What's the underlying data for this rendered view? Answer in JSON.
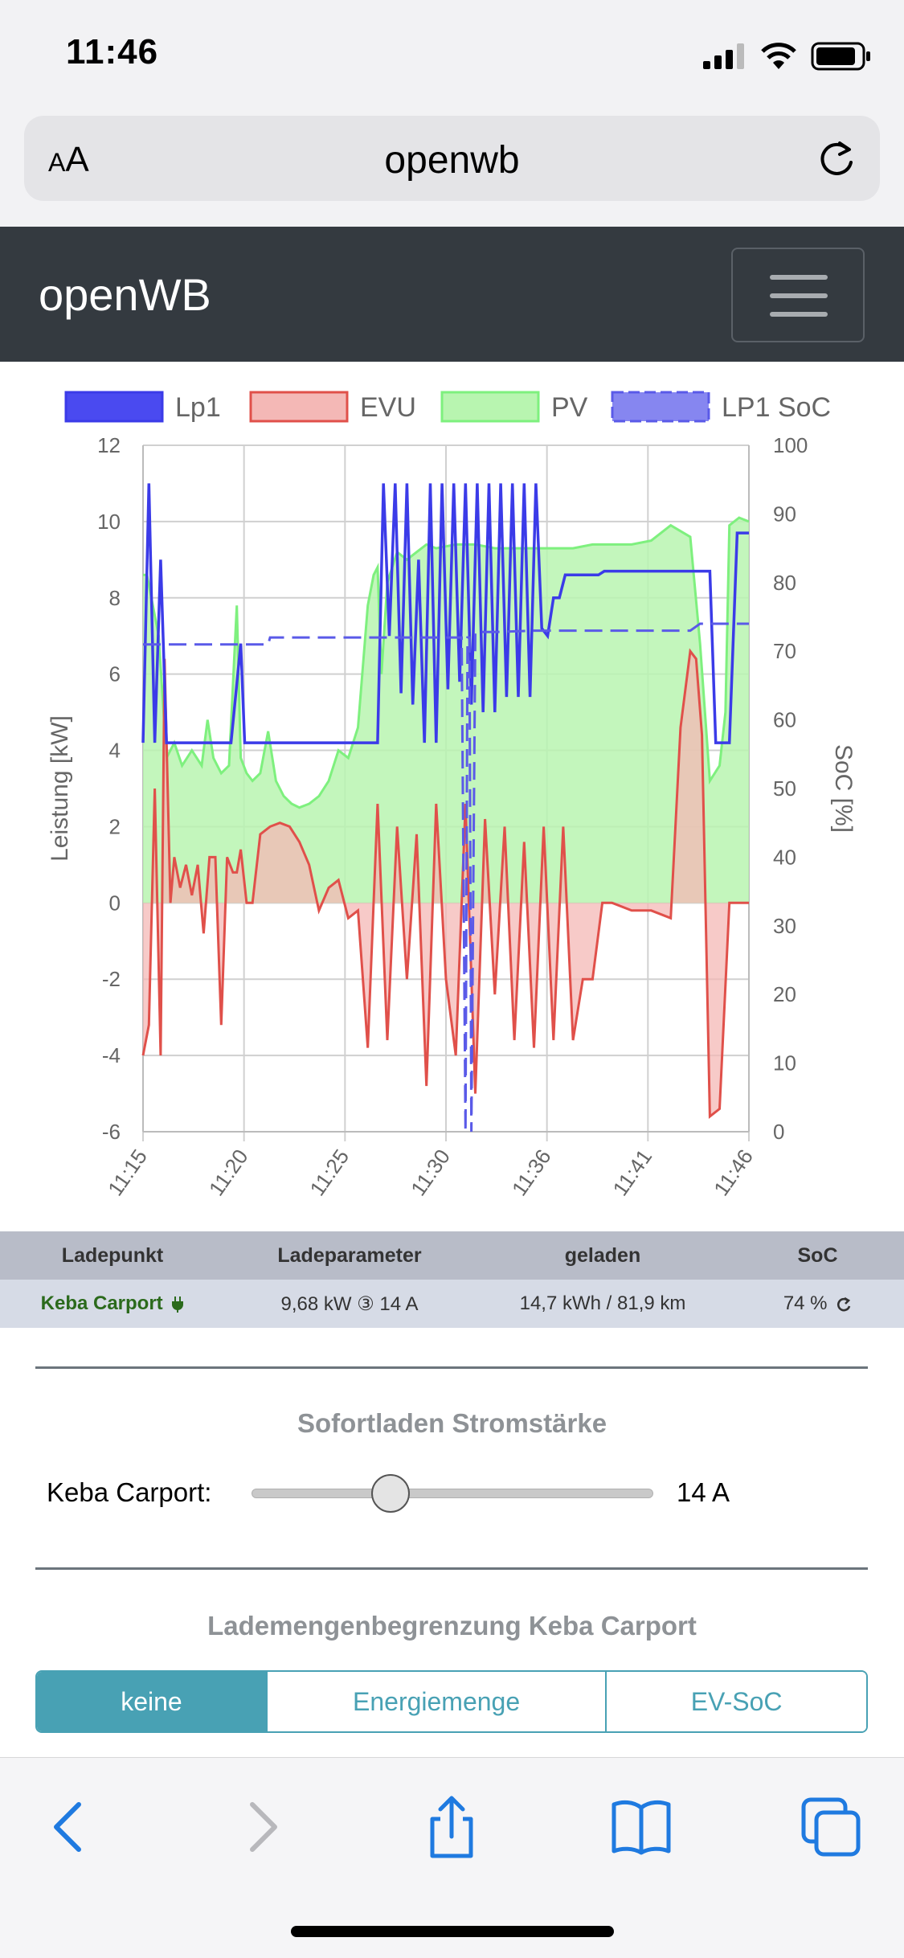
{
  "status": {
    "time": "11:46"
  },
  "browser": {
    "aa_label_small": "A",
    "aa_label_large": "A",
    "url": "openwb"
  },
  "navbar": {
    "brand": "openWB"
  },
  "chart_data": {
    "type": "line",
    "legend": [
      {
        "name": "Lp1",
        "color": "#3b3be8",
        "fill": "#4a4af0"
      },
      {
        "name": "EVU",
        "color": "#e0504a",
        "fill": "#f4b8b6"
      },
      {
        "name": "PV",
        "color": "#7ef07e",
        "fill": "#b8f5b0"
      },
      {
        "name": "LP1 SoC",
        "color": "#5a5ae8",
        "fill": "#8686f0"
      }
    ],
    "ylabel": "Leistung [kW]",
    "y2label": "SoC [%]",
    "ylim": [
      -6,
      12
    ],
    "y2lim": [
      0,
      100
    ],
    "yticks": [
      12,
      10,
      8,
      6,
      4,
      2,
      0,
      -2,
      -4,
      -6
    ],
    "y2ticks": [
      100,
      90,
      80,
      70,
      60,
      50,
      40,
      30,
      20,
      10,
      0
    ],
    "xticks": [
      "11:15",
      "11:20",
      "11:25",
      "11:30",
      "11:36",
      "11:41",
      "11:46"
    ],
    "xlim": [
      0,
      31
    ],
    "series": [
      {
        "name": "PV",
        "x": [
          0,
          0.2,
          0.8,
          1.2,
          1.6,
          2,
          2.5,
          3,
          3.3,
          3.6,
          4,
          4.4,
          4.8,
          5,
          5.3,
          5.6,
          6,
          6.4,
          6.8,
          7.2,
          7.6,
          8,
          8.5,
          9,
          9.5,
          10,
          10.5,
          11,
          11.5,
          11.8,
          12,
          12.2,
          12.5,
          13,
          13.5,
          14,
          14.5,
          15,
          16,
          17,
          18,
          19,
          20,
          21,
          22,
          23,
          24,
          25,
          26,
          27,
          28,
          28.5,
          29,
          29.5,
          29.8,
          30,
          30.5,
          31
        ],
        "values": [
          8.6,
          8.6,
          7.0,
          3.8,
          4.2,
          3.6,
          4.0,
          3.6,
          4.8,
          3.8,
          3.4,
          3.6,
          7.8,
          3.8,
          3.4,
          3.2,
          3.4,
          4.5,
          3.2,
          2.8,
          2.6,
          2.5,
          2.6,
          2.8,
          3.2,
          4.0,
          3.8,
          4.6,
          7.8,
          8.6,
          8.8,
          6.0,
          8.4,
          9.2,
          9.0,
          9.2,
          9.4,
          9.3,
          9.4,
          9.4,
          9.3,
          9.3,
          9.3,
          9.3,
          9.3,
          9.4,
          9.4,
          9.4,
          9.5,
          9.9,
          9.6,
          6.8,
          3.2,
          3.6,
          5.0,
          9.9,
          10.1,
          10.0
        ]
      },
      {
        "name": "EVU",
        "x": [
          0,
          0.3,
          0.6,
          0.9,
          1.1,
          1.4,
          1.6,
          1.9,
          2.2,
          2.5,
          2.8,
          3.1,
          3.4,
          3.7,
          4.0,
          4.3,
          4.6,
          4.8,
          5.0,
          5.3,
          5.6,
          6,
          6.5,
          7,
          7.5,
          8,
          8.5,
          9,
          9.5,
          10,
          10.5,
          11,
          11.5,
          12,
          12.5,
          13,
          13.5,
          14,
          14.5,
          15,
          15.5,
          16,
          16.5,
          17,
          17.5,
          18,
          18.5,
          19,
          19.5,
          20,
          20.5,
          21,
          21.5,
          22,
          22.5,
          23,
          23.5,
          24,
          25,
          26,
          27,
          27.5,
          28,
          28.3,
          28.6,
          29,
          29.5,
          30,
          30.5,
          31
        ],
        "values": [
          -4.0,
          -3.2,
          3.0,
          -4.0,
          6.4,
          0,
          1.2,
          0.4,
          1.0,
          0.2,
          1.0,
          -0.8,
          1.2,
          1.2,
          -3.2,
          1.2,
          0.8,
          0.8,
          1.4,
          0,
          0,
          1.8,
          2.0,
          2.1,
          2.0,
          1.6,
          1.0,
          -0.2,
          0.4,
          0.6,
          -0.4,
          -0.2,
          -3.8,
          2.6,
          -3.6,
          2.0,
          -2.0,
          1.8,
          -4.8,
          2.6,
          -2.0,
          -4.0,
          2.6,
          -5.0,
          2.2,
          -2.4,
          2.0,
          -3.6,
          1.6,
          -3.8,
          2.0,
          -3.6,
          2.0,
          -3.6,
          -2.0,
          -2.0,
          0,
          0,
          -0.2,
          -0.2,
          -0.4,
          4.6,
          6.6,
          6.4,
          4.4,
          -5.6,
          -5.4,
          0,
          0,
          0
        ]
      },
      {
        "name": "Lp1",
        "x": [
          0,
          0.3,
          0.6,
          0.9,
          1.2,
          1.5,
          1.8,
          2.2,
          2.6,
          3,
          4,
          4.5,
          5,
          5.2,
          5.5,
          6,
          7,
          8,
          9,
          10,
          11,
          12,
          12.3,
          12.6,
          12.9,
          13.2,
          13.5,
          13.8,
          14.1,
          14.4,
          14.7,
          15,
          15.3,
          15.6,
          15.9,
          16.2,
          16.5,
          16.8,
          17.1,
          17.4,
          17.7,
          18,
          18.3,
          18.6,
          18.9,
          19.2,
          19.5,
          19.8,
          20.1,
          20.4,
          20.7,
          21,
          21.3,
          21.6,
          21.9,
          22.2,
          22.5,
          22.8,
          23,
          23.3,
          23.6,
          24,
          25,
          26,
          27,
          28,
          28.3,
          28.6,
          29,
          29.3,
          29.6,
          30,
          30.4,
          31
        ],
        "values": [
          4.2,
          11.0,
          4.2,
          9.0,
          4.2,
          4.2,
          4.2,
          4.2,
          4.2,
          4.2,
          4.2,
          4.2,
          6.8,
          4.2,
          4.2,
          4.2,
          4.2,
          4.2,
          4.2,
          4.2,
          4.2,
          4.2,
          11.0,
          7.0,
          11.0,
          5.5,
          11.0,
          5.2,
          9.0,
          4.2,
          11.0,
          4.2,
          11.0,
          5.6,
          11.0,
          5.8,
          11.0,
          5.2,
          11.0,
          5.0,
          11.0,
          5.0,
          11.0,
          5.4,
          11.0,
          5.4,
          11.0,
          5.4,
          11.0,
          7.2,
          7.0,
          8.0,
          8.0,
          8.6,
          8.6,
          8.6,
          8.6,
          8.6,
          8.6,
          8.6,
          8.7,
          8.7,
          8.7,
          8.7,
          8.7,
          8.7,
          8.7,
          8.7,
          8.7,
          4.2,
          4.2,
          4.2,
          9.7,
          9.7
        ]
      },
      {
        "name": "LP1 SoC",
        "x": [
          0,
          3,
          4.8,
          5,
          6,
          6.4,
          6.5,
          8,
          10,
          12,
          13,
          14,
          15,
          16,
          16.3,
          16.5,
          16.6,
          16.7,
          16.8,
          17,
          18,
          20,
          22,
          24,
          26,
          28,
          28.5,
          31
        ],
        "values": [
          71,
          71,
          71,
          71,
          71,
          71,
          72,
          72,
          72,
          72,
          72,
          72,
          72,
          72,
          72,
          0,
          72,
          72,
          0,
          72.8,
          72.8,
          73,
          73,
          73,
          73,
          73,
          74,
          74
        ]
      }
    ]
  },
  "table": {
    "headers": [
      "Ladepunkt",
      "Ladeparameter",
      "geladen",
      "SoC"
    ],
    "row": {
      "name": "Keba Carport",
      "params": "9,68 kW ③ 14 A",
      "charged": "14,7 kWh / 81,9 km",
      "soc": "74 %"
    }
  },
  "sofortladen": {
    "title": "Sofortladen Stromstärke",
    "label": "Keba Carport:",
    "value": "14 A",
    "slider_fraction": 0.33
  },
  "lademenge": {
    "title": "Lademengenbegrenzung Keba Carport",
    "options": [
      "keine",
      "Energiemenge",
      "EV-SoC"
    ],
    "selected": "keine"
  }
}
